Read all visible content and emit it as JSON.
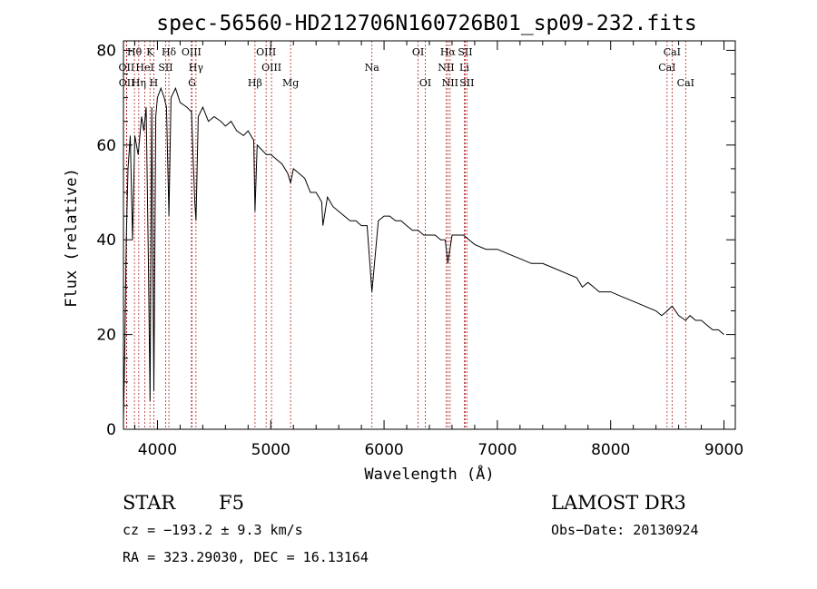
{
  "chart_data": {
    "type": "line",
    "title": "spec-56560-HD212706N160726B01_sp09-232.fits",
    "xlabel": "Wavelength (Å)",
    "ylabel": "Flux (relative)",
    "xlim": [
      3700,
      9100
    ],
    "ylim": [
      0,
      82
    ],
    "x_ticks": [
      4000,
      5000,
      6000,
      7000,
      8000,
      9000
    ],
    "y_ticks": [
      0,
      20,
      40,
      60,
      80
    ],
    "grid": false,
    "line_color": "#000000",
    "marker_color": "#b22222",
    "series": [
      {
        "name": "flux",
        "x": [
          3700,
          3712,
          3725,
          3740,
          3760,
          3780,
          3800,
          3830,
          3860,
          3880,
          3900,
          3920,
          3935,
          3950,
          3968,
          3985,
          4000,
          4030,
          4060,
          4080,
          4101,
          4120,
          4160,
          4200,
          4260,
          4300,
          4330,
          4340,
          4360,
          4400,
          4450,
          4500,
          4560,
          4600,
          4650,
          4700,
          4760,
          4800,
          4850,
          4861,
          4880,
          4920,
          4960,
          5000,
          5050,
          5100,
          5150,
          5175,
          5200,
          5250,
          5300,
          5350,
          5400,
          5450,
          5460,
          5500,
          5550,
          5600,
          5650,
          5700,
          5750,
          5800,
          5850,
          5893,
          5950,
          6000,
          6050,
          6100,
          6150,
          6200,
          6250,
          6300,
          6350,
          6400,
          6450,
          6500,
          6540,
          6563,
          6600,
          6650,
          6700,
          6750,
          6800,
          6900,
          7000,
          7100,
          7200,
          7300,
          7400,
          7500,
          7600,
          7700,
          7750,
          7800,
          7850,
          7900,
          8000,
          8100,
          8200,
          8300,
          8400,
          8450,
          8500,
          8542,
          8600,
          8662,
          8700,
          8750,
          8800,
          8850,
          8900,
          8950,
          9000
        ],
        "y": [
          2,
          17,
          40,
          55,
          62,
          40,
          62,
          58,
          66,
          63,
          68,
          35,
          6,
          68,
          8,
          66,
          70,
          72,
          70,
          68,
          45,
          70,
          72,
          69,
          68,
          67,
          48,
          44,
          66,
          68,
          65,
          66,
          65,
          64,
          65,
          63,
          62,
          63,
          61,
          46,
          60,
          59,
          58,
          58,
          57,
          56,
          54,
          52,
          55,
          54,
          53,
          50,
          50,
          48,
          43,
          49,
          47,
          46,
          45,
          44,
          44,
          43,
          43,
          29,
          44,
          45,
          45,
          44,
          44,
          43,
          42,
          42,
          41,
          41,
          41,
          40,
          40,
          35,
          41,
          41,
          41,
          40,
          39,
          38,
          38,
          37,
          36,
          35,
          35,
          34,
          33,
          32,
          30,
          31,
          30,
          29,
          29,
          28,
          27,
          26,
          25,
          24,
          25,
          26,
          24,
          23,
          24,
          23,
          23,
          22,
          21,
          21,
          20
        ]
      }
    ],
    "annotations": [
      {
        "label": "OⅠI",
        "x": 3727,
        "row": 2
      },
      {
        "label": "OⅠI",
        "x": 3729,
        "row": 3
      },
      {
        "label": "Hθ",
        "x": 3797,
        "row": 1
      },
      {
        "label": "Hη",
        "x": 3835,
        "row": 3
      },
      {
        "label": "HeⅠ",
        "x": 3889,
        "row": 2
      },
      {
        "label": "K",
        "x": 3934,
        "row": 1
      },
      {
        "label": "H",
        "x": 3968,
        "row": 3
      },
      {
        "label": "SⅠI",
        "x": 4072,
        "row": 2
      },
      {
        "label": "Hδ",
        "x": 4101,
        "row": 1
      },
      {
        "label": "OⅠII",
        "x": 4300,
        "row": 1
      },
      {
        "label": "Hγ",
        "x": 4340,
        "row": 2
      },
      {
        "label": "G",
        "x": 4305,
        "row": 3
      },
      {
        "label": "Hβ",
        "x": 4861,
        "row": 3
      },
      {
        "label": "OⅠII",
        "x": 4959,
        "row": 1
      },
      {
        "label": "OⅠII",
        "x": 5007,
        "row": 2
      },
      {
        "label": "Mg",
        "x": 5175,
        "row": 3
      },
      {
        "label": "Na",
        "x": 5893,
        "row": 2
      },
      {
        "label": "OⅠ",
        "x": 6300,
        "row": 1
      },
      {
        "label": "OⅠ",
        "x": 6364,
        "row": 3
      },
      {
        "label": "Hα",
        "x": 6563,
        "row": 1
      },
      {
        "label": "NⅠI",
        "x": 6548,
        "row": 2
      },
      {
        "label": "NⅠI",
        "x": 6583,
        "row": 3
      },
      {
        "label": "SⅠI",
        "x": 6716,
        "row": 1
      },
      {
        "label": "Li",
        "x": 6708,
        "row": 2
      },
      {
        "label": "SⅠI",
        "x": 6731,
        "row": 3
      },
      {
        "label": "CaⅠ",
        "x": 8498,
        "row": 2
      },
      {
        "label": "CaⅠ",
        "x": 8542,
        "row": 1
      },
      {
        "label": "CaⅠ",
        "x": 8662,
        "row": 3
      }
    ]
  },
  "info": {
    "object_type": "STAR",
    "subclass": "F5",
    "survey": "LAMOST DR3",
    "cz": "cz = −193.2 ± 9.3 km/s",
    "obs_date": "Obs−Date: 20130924",
    "coords": "RA = 323.29030, DEC =  16.13164"
  }
}
